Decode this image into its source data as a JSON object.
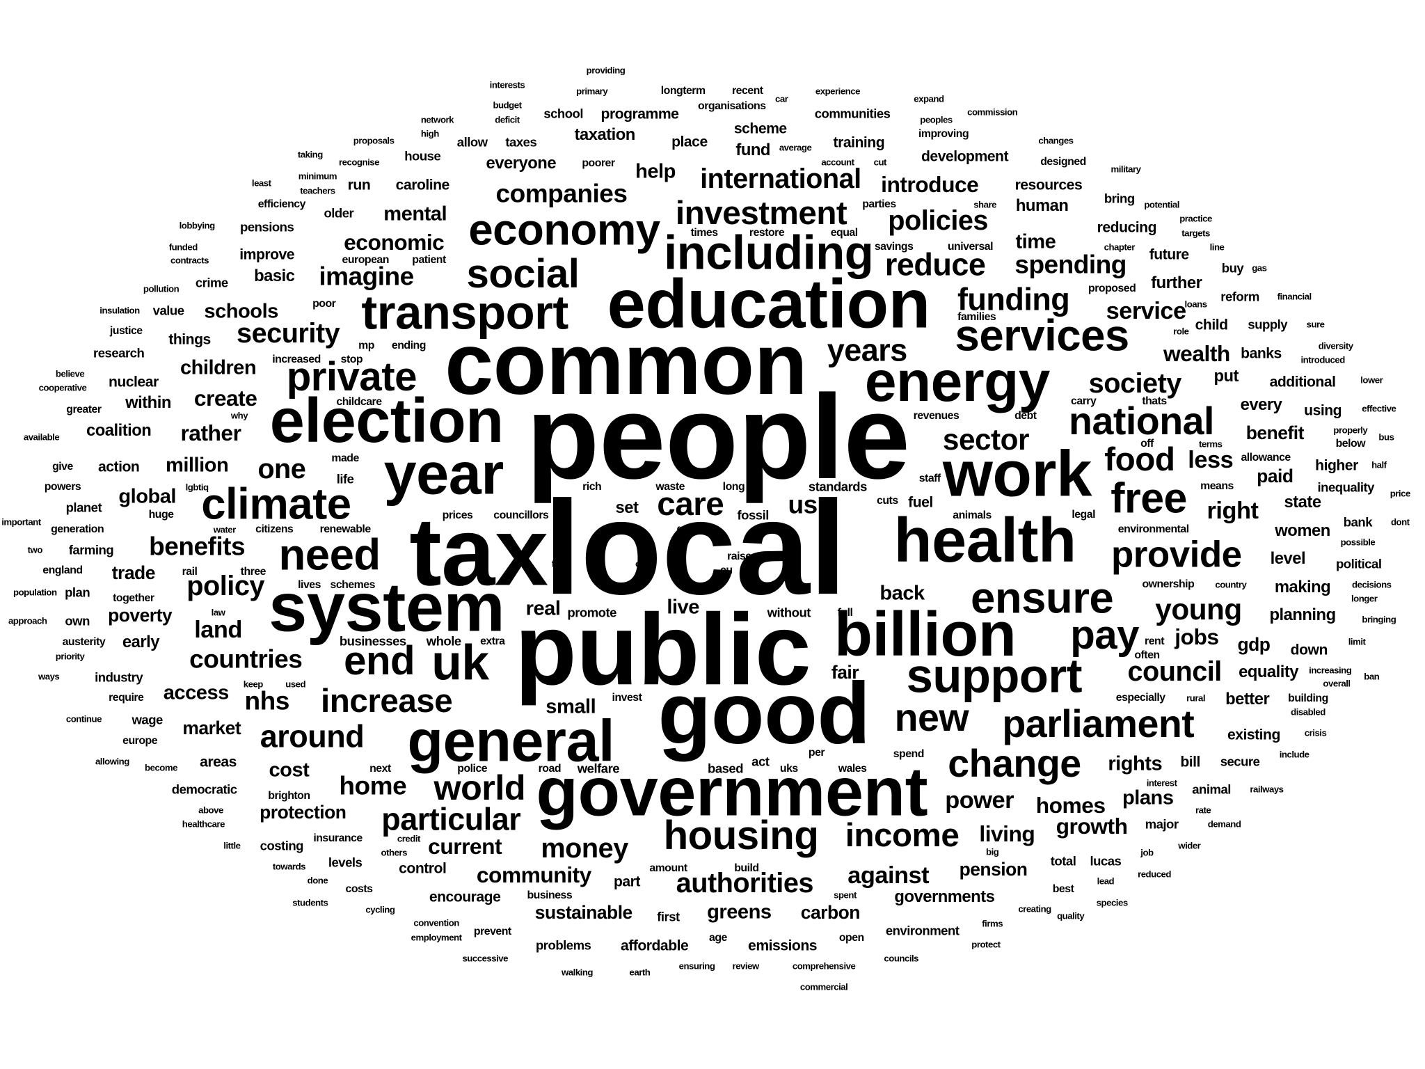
{
  "cloud": {
    "text_color": "#000000",
    "background": "#ffffff",
    "words": [
      "people",
      "local",
      "public",
      "tax",
      "common",
      "good",
      "education",
      "government",
      "system",
      "election",
      "energy",
      "work",
      "billion",
      "health",
      "general",
      "year",
      "transport",
      "climate",
      "economy",
      "including",
      "services",
      "private",
      "uk",
      "support",
      "ensure",
      "end",
      "need",
      "pay",
      "free",
      "national",
      "parliament",
      "change",
      "housing",
      "social",
      "new",
      "world",
      "increase",
      "provide",
      "investment",
      "income",
      "particular",
      "international",
      "reduce",
      "policies",
      "funding",
      "money",
      "authorities",
      "care",
      "years",
      "sector",
      "food",
      "society",
      "young",
      "around",
      "home",
      "countries",
      "imagine",
      "security",
      "benefits",
      "companies",
      "introduce",
      "spending",
      "policy",
      "community",
      "against",
      "power",
      "growth",
      "nhs",
      "wealth",
      "less",
      "one",
      "us",
      "right",
      "council",
      "service",
      "create",
      "economic",
      "mental",
      "children",
      "global",
      "land",
      "million",
      "rather",
      "schools",
      "time",
      "help",
      "services2",
      "homes",
      "living",
      "current",
      "jobs",
      "rights",
      "plans",
      "back",
      "sustainable",
      "greens",
      "carbon",
      "pension",
      "governments",
      "small",
      "real",
      "live",
      "fair",
      "protection",
      "cost",
      "poverty",
      "trade",
      "access",
      "market",
      "coalition",
      "within",
      "nuclear",
      "action",
      "early",
      "gdp",
      "equality",
      "better",
      "planning",
      "making",
      "level",
      "state",
      "women",
      "paid",
      "benefit",
      "every",
      "additional",
      "put",
      "banks",
      "further",
      "future",
      "reducing",
      "resources",
      "human",
      "development",
      "scheme",
      "fund",
      "place",
      "training",
      "communities",
      "programme",
      "taxation",
      "everyone",
      "taxes",
      "caroline",
      "house",
      "older",
      "pensions",
      "improve",
      "basic",
      "crime",
      "value",
      "things",
      "research",
      "greater",
      "give",
      "planet",
      "plan",
      "own",
      "austerity",
      "industry",
      "require",
      "wage",
      "europe",
      "areas",
      "democratic",
      "brighton",
      "costing",
      "levels",
      "costs",
      "control",
      "encourage",
      "part",
      "first",
      "problems",
      "affordable",
      "emissions",
      "open",
      "environment",
      "total",
      "lucas",
      "best",
      "prevent",
      "existing",
      "secure",
      "animal",
      "bill",
      "major",
      "down",
      "higher",
      "inequality",
      "using",
      "supply",
      "reform",
      "buy",
      "child",
      "political",
      "bank",
      "fossil",
      "fuel",
      "animals",
      "set",
      "long",
      "waste",
      "rich",
      "prices",
      "councillors",
      "life",
      "renewable",
      "citizens",
      "generation",
      "farming",
      "together",
      "england",
      "lives",
      "schemes",
      "mp",
      "ending",
      "increased",
      "stop",
      "childcare",
      "made",
      "powers",
      "important",
      "two",
      "population",
      "approach",
      "priority",
      "ways",
      "continue",
      "allowing",
      "become",
      "above",
      "healthcare",
      "little",
      "towards",
      "done",
      "students",
      "cycling",
      "convention",
      "employment",
      "successive",
      "walking",
      "earth",
      "ensuring",
      "review",
      "comprehensive",
      "commercial",
      "councils",
      "protect",
      "firms",
      "creating",
      "quality",
      "species",
      "reduced",
      "lead",
      "job",
      "wider",
      "demand",
      "rate",
      "interest",
      "railways",
      "include",
      "crisis",
      "overall",
      "ban",
      "limit",
      "bringing",
      "longer",
      "decisions",
      "political2",
      "possible",
      "dont",
      "price",
      "bus",
      "effective",
      "lower",
      "diversity",
      "introduced",
      "sure",
      "financial",
      "gas",
      "line",
      "targets",
      "practice",
      "potential",
      "military",
      "designed",
      "changes",
      "commission",
      "expand",
      "experience",
      "longterm",
      "recent",
      "providing",
      "interests",
      "primary",
      "budget",
      "deficit",
      "network",
      "high",
      "proposals",
      "taking",
      "minimum",
      "teachers",
      "least",
      "efficiency",
      "lobbying",
      "funded",
      "contracts",
      "pollution",
      "insulation",
      "justice",
      "believe",
      "cooperative",
      "why",
      "available",
      "recognise",
      "allow",
      "school",
      "poorer",
      "car",
      "average",
      "organisations",
      "account",
      "cut",
      "improving",
      "peoples",
      "share",
      "bring",
      "chapter",
      "equal",
      "times",
      "restore",
      "savings",
      "universal",
      "patient",
      "parties",
      "families",
      "loans",
      "role",
      "proposed",
      "poor",
      "carry",
      "thats",
      "revenues",
      "allowance",
      "means",
      "legal",
      "environmental",
      "ownership",
      "country",
      "rent",
      "often",
      "especially",
      "rural",
      "increasing",
      "disabled",
      "building",
      "half",
      "properly",
      "below",
      "off",
      "terms",
      "debt",
      "raise",
      "eu",
      "far",
      "old",
      "water",
      "law",
      "without",
      "full",
      "per",
      "standards",
      "staff",
      "cuts",
      "go",
      "act",
      "uks",
      "wales",
      "spend",
      "road",
      "police",
      "welfare",
      "based",
      "next",
      "invest",
      "extra",
      "whole",
      "businesses",
      "keep",
      "used",
      "big",
      "others",
      "credit",
      "insurance",
      "amount",
      "build",
      "spent",
      "business",
      "age",
      "european",
      "run",
      "lgbtiq",
      "huge",
      "promote",
      "means2",
      "three",
      "rail",
      "account2"
    ]
  }
}
